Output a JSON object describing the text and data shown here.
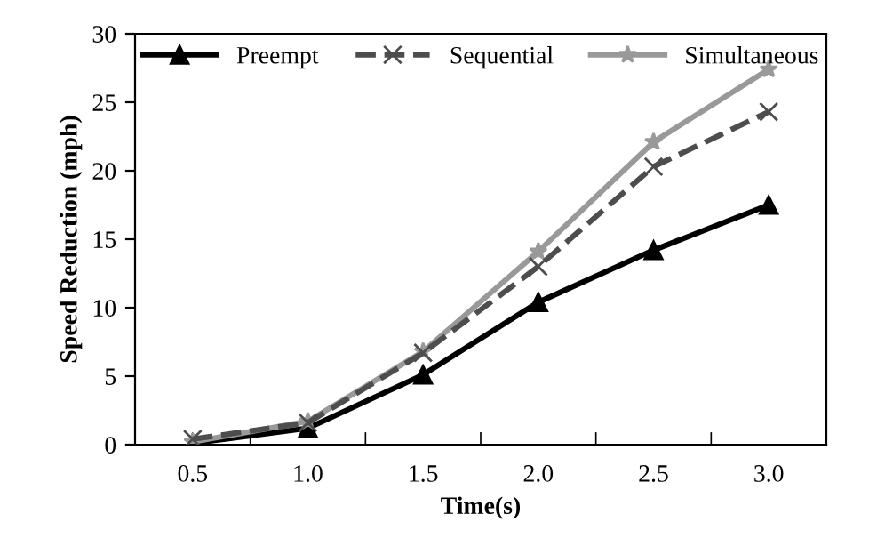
{
  "chart_data": {
    "type": "line",
    "xlabel": "Time(s)",
    "ylabel": "Speed Reduction (mph)",
    "categories": [
      "0.5",
      "1.0",
      "1.5",
      "2.0",
      "2.5",
      "3.0"
    ],
    "series": [
      {
        "name": "Preempt",
        "color": "#000000",
        "marker": "triangle",
        "line_style": "solid",
        "values": [
          0.1,
          1.2,
          5.1,
          10.4,
          14.2,
          17.5
        ]
      },
      {
        "name": "Sequential",
        "color": "#4d4d4d",
        "marker": "cross",
        "line_style": "dashed",
        "values": [
          0.4,
          1.6,
          6.7,
          13.0,
          20.3,
          24.3
        ]
      },
      {
        "name": "Simultaneous",
        "color": "#999999",
        "marker": "star",
        "line_style": "solid",
        "values": [
          0.2,
          1.7,
          6.8,
          14.1,
          22.1,
          27.4
        ]
      }
    ],
    "ylim": [
      0,
      30
    ],
    "yticks": [
      0,
      5,
      10,
      15,
      20,
      25,
      30
    ],
    "grid": false,
    "legend": "top"
  }
}
